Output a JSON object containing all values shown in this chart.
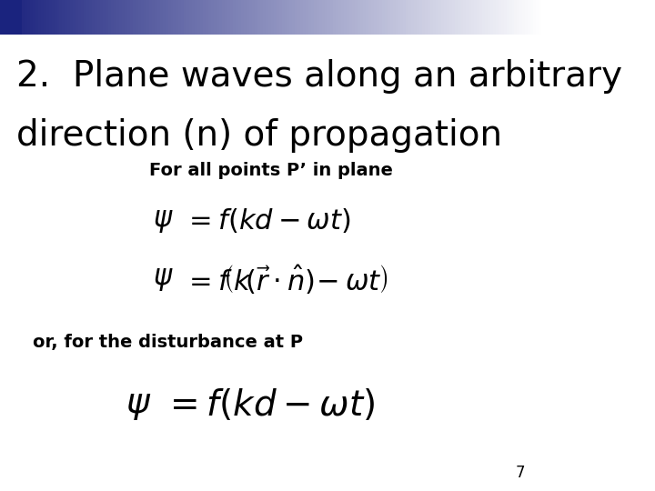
{
  "background_color": "#ffffff",
  "title_line1": "2.  Plane waves along an arbitrary",
  "title_line2": "direction (n) of propagation",
  "title_color": "#000000",
  "title_fontsize": 28,
  "subtitle": "For all points P’ in plane",
  "subtitle_fontsize": 14,
  "subtitle_color": "#000000",
  "label1": "or, for the disturbance at P",
  "label1_fontsize": 14,
  "label1_color": "#000000",
  "eq_fontsize": 22,
  "eq_large_fontsize": 28,
  "page_number": "7",
  "page_number_fontsize": 12,
  "page_number_color": "#000000",
  "eq_color": "#000000",
  "header_dark_color": "#1a237e"
}
